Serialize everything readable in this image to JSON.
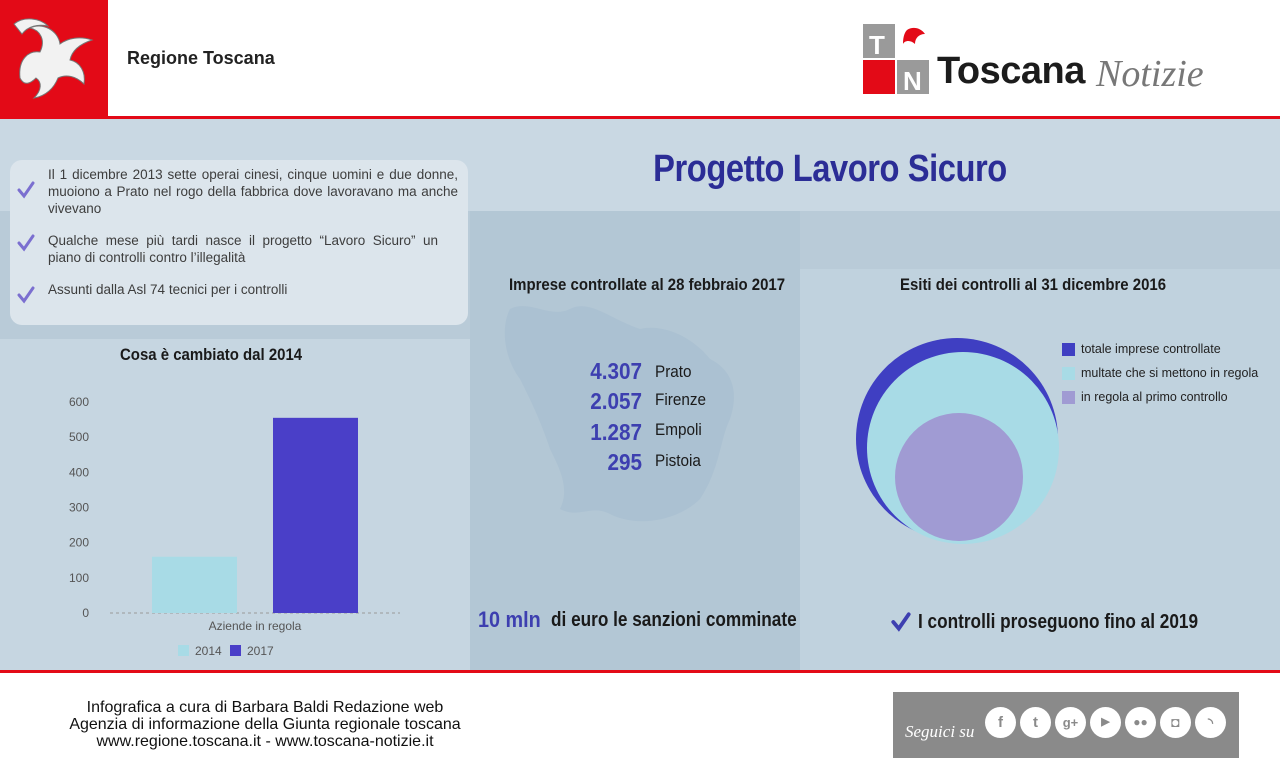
{
  "header": {
    "region_name": "Regione Toscana",
    "brand_word": "Toscana",
    "brand_italic": "Notizie",
    "colors": {
      "red": "#e30a17",
      "navy": "#2b2d96"
    }
  },
  "title": "Progetto Lavoro Sicuro",
  "bullets": [
    "Il 1 dicembre 2013 sette operai cinesi, cinque uomini e due donne, muoiono a Prato nel rogo della fabbrica dove lavoravano ma anche vivevano",
    "Qualche mese più tardi nasce il progetto “Lavoro Sicuro” un piano di controlli contro l’illegalità",
    "Assunti dalla Asl 74 tecnici per i controlli"
  ],
  "companies": {
    "title": "Imprese controllate al 28 febbraio 2017",
    "rows": [
      {
        "value": "4.307",
        "city": "Prato"
      },
      {
        "value": "2.057",
        "city": "Firenze"
      },
      {
        "value": "1.287",
        "city": "Empoli"
      },
      {
        "value": "295",
        "city": "Pistoia"
      }
    ]
  },
  "outcomes": {
    "title": "Esiti dei controlli al 31 dicembre 2016",
    "legend": [
      {
        "label": "totale imprese controllate",
        "color": "#3f3fc2"
      },
      {
        "label": "multate che si mettono in regola",
        "color": "#a8dbe6"
      },
      {
        "label": "in regola al primo controllo",
        "color": "#a09bd3"
      }
    ]
  },
  "sanctions": {
    "value": "10 mln",
    "text": "di euro le sanzioni comminate"
  },
  "continue_text": "I controlli proseguono fino al 2019",
  "footer": {
    "lines": [
      "Infografica a cura di Barbara Baldi Redazione web",
      "Agenzia di informazione della Giunta regionale toscana",
      "www.regione.toscana.it - www.toscana-notizie.it"
    ],
    "follow": "Seguici su",
    "social_icons": [
      "facebook-icon",
      "twitter-icon",
      "google-plus-icon",
      "youtube-icon",
      "flickr-icon",
      "instagram-icon",
      "rss-icon"
    ]
  },
  "chart_data": {
    "type": "bar",
    "title": "Cosa è cambiato dal 2014",
    "categories": [
      "Aziende in regola"
    ],
    "series": [
      {
        "name": "2014",
        "values": [
          160
        ],
        "color": "#a8dbe6"
      },
      {
        "name": "2017",
        "values": [
          555
        ],
        "color": "#4a3fc8"
      }
    ],
    "yticks": [
      "0",
      "100",
      "200",
      "300",
      "400",
      "500",
      "600"
    ],
    "ylim": [
      0,
      600
    ],
    "grid": false,
    "legend": "bottom"
  }
}
